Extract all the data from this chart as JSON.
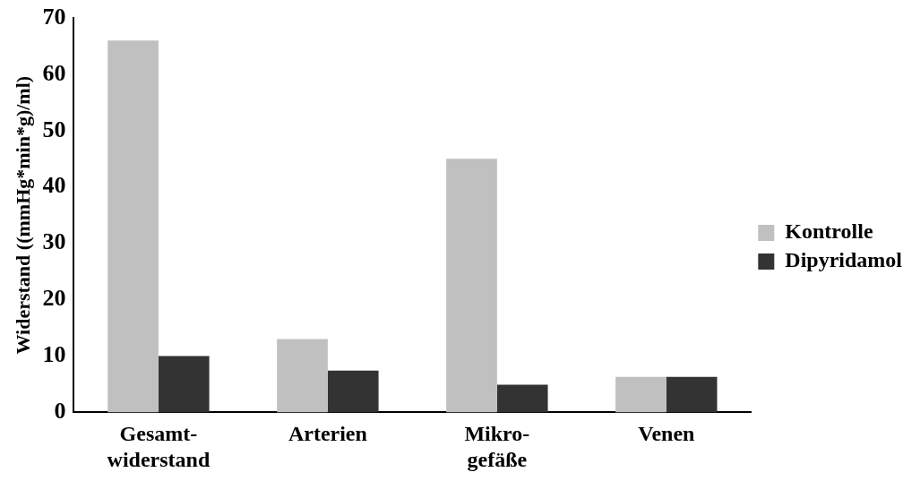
{
  "chart_data": {
    "type": "bar",
    "ylabel": "Widerstand ((mmHg*min*g)/ml)",
    "categories": [
      "Gesamt-widerstand",
      "Arterien",
      "Mikro-gefäße",
      "Venen"
    ],
    "series": [
      {
        "name": "Kontrolle",
        "color": "#c0c0c0",
        "values": [
          66,
          13,
          45,
          6.3
        ]
      },
      {
        "name": "Dipyridamol",
        "color": "#333333",
        "values": [
          10,
          7.4,
          4.9,
          6.3
        ]
      }
    ],
    "ylim": [
      0,
      70
    ],
    "yticks": [
      0,
      10,
      20,
      30,
      40,
      50,
      60,
      70
    ],
    "grid": false,
    "legend": "right"
  }
}
